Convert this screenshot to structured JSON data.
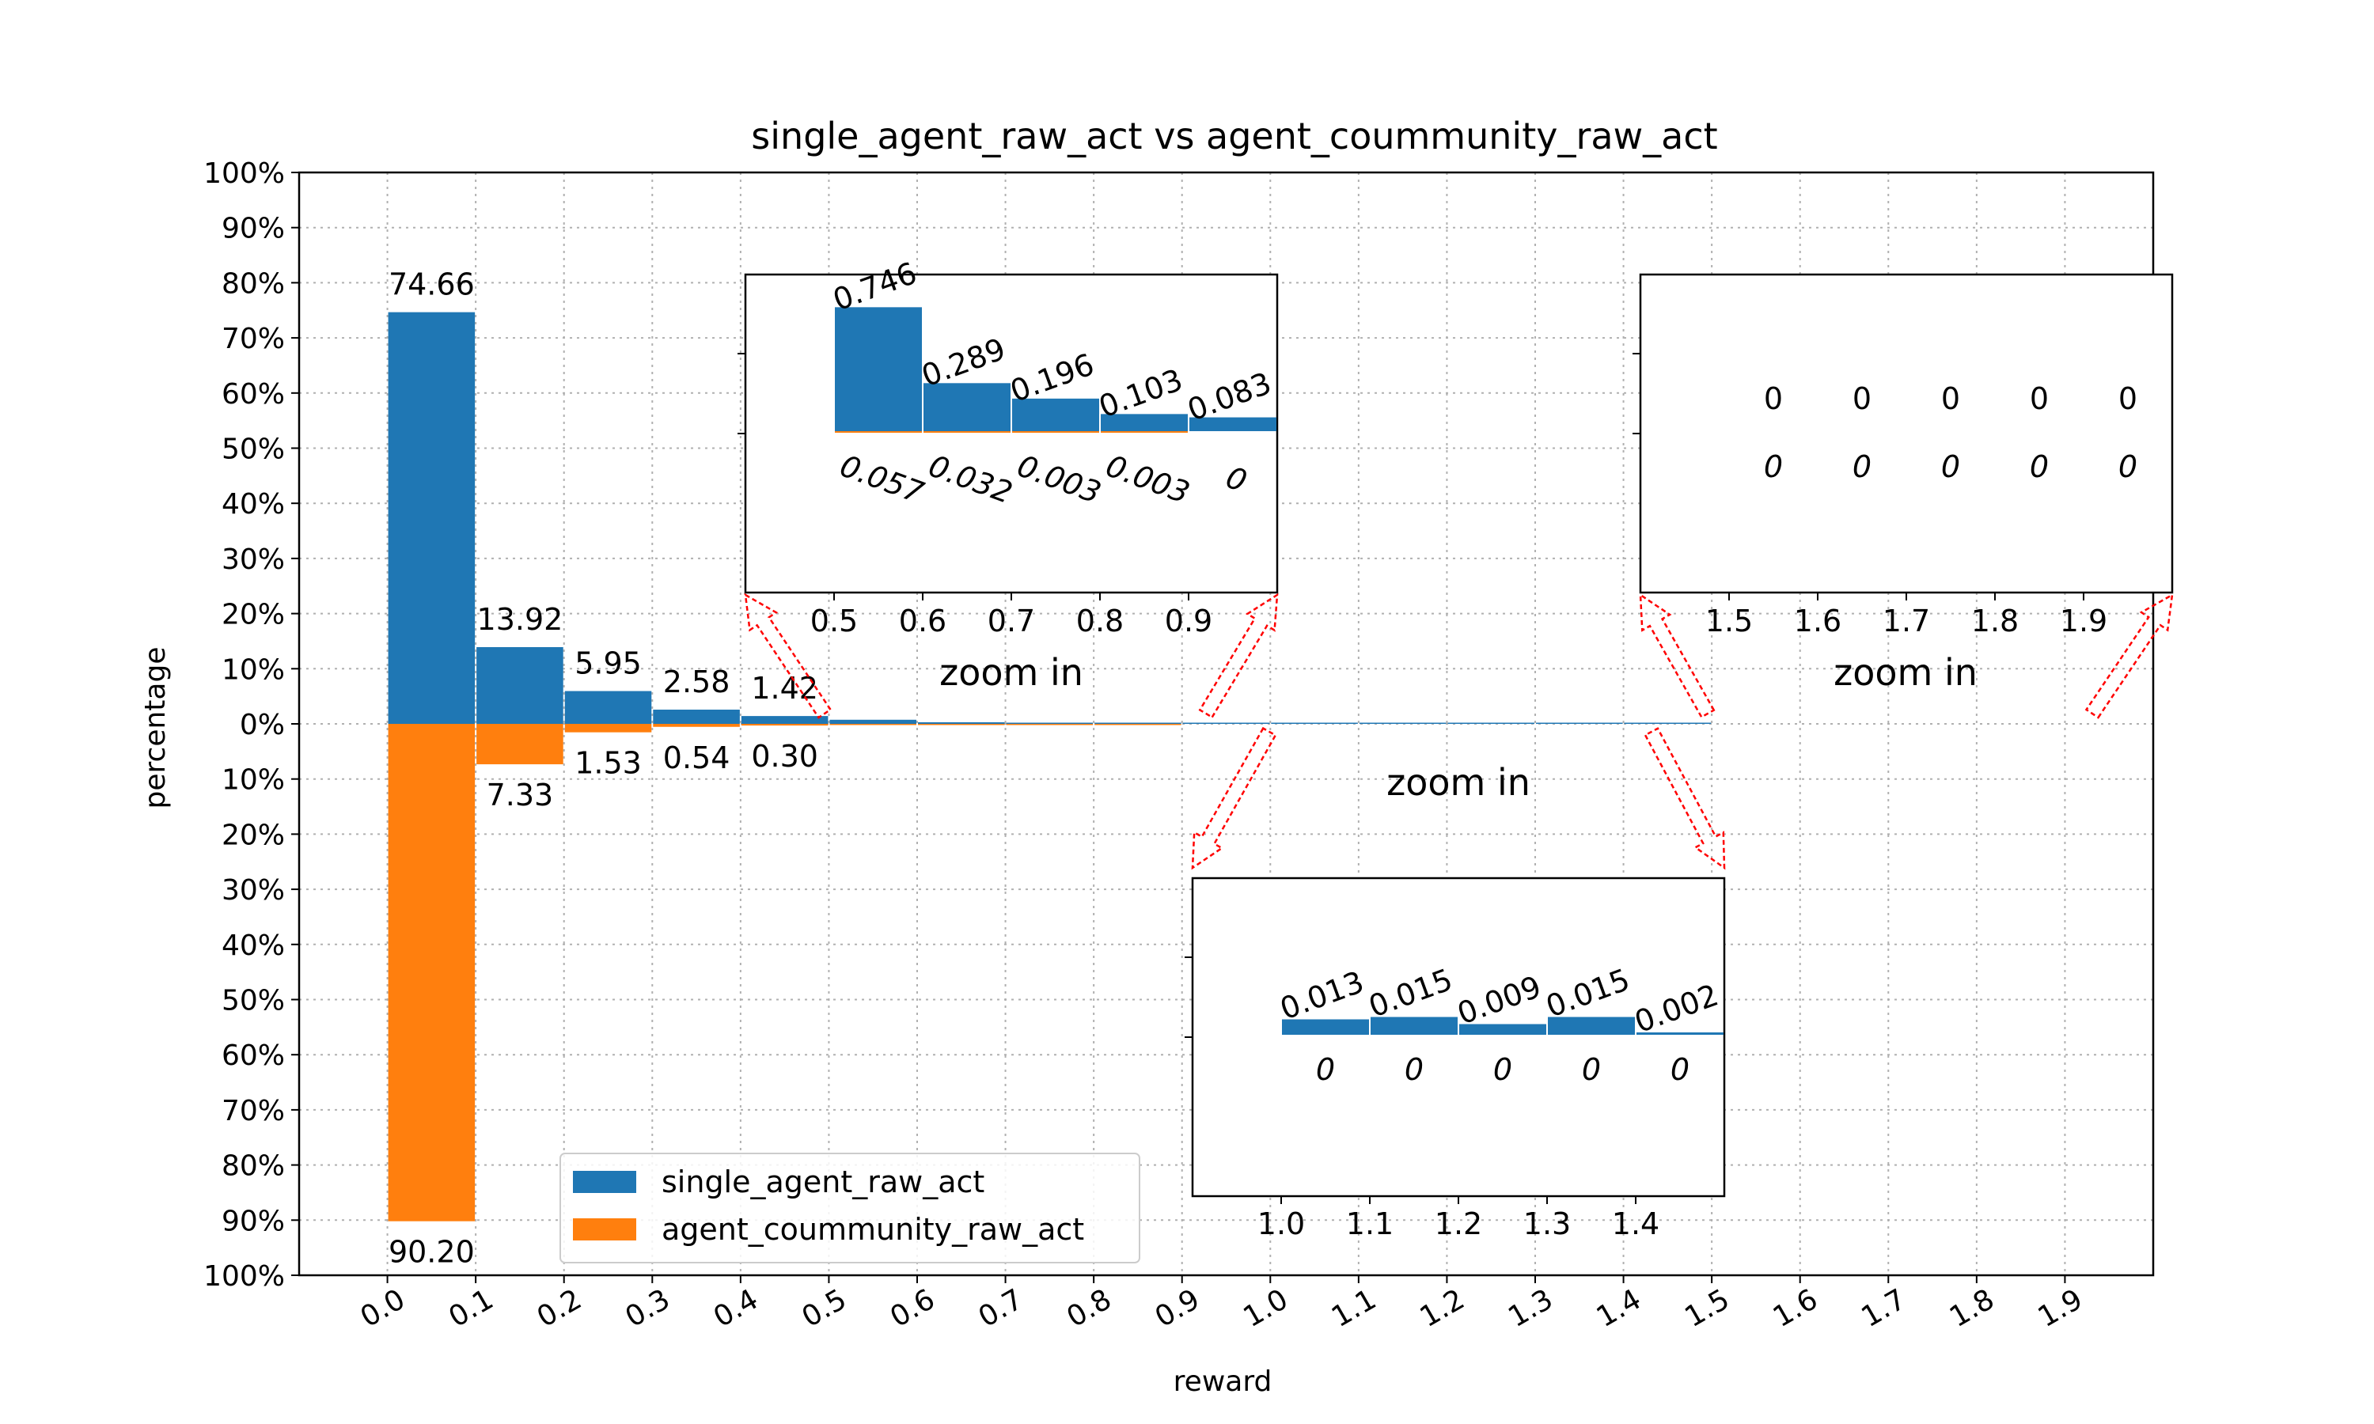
{
  "chart_data": {
    "type": "bar",
    "title": "single_agent_raw_act vs agent_coummunity_raw_act",
    "xlabel": "reward",
    "ylabel": "percentage",
    "ylim": [
      -100,
      100
    ],
    "xlim": [
      -0.1,
      2.0
    ],
    "grid": true,
    "legend_position": "lower-center",
    "x_ticks": [
      "0.0",
      "0.1",
      "0.2",
      "0.3",
      "0.4",
      "0.5",
      "0.6",
      "0.7",
      "0.8",
      "0.9",
      "1.0",
      "1.1",
      "1.2",
      "1.3",
      "1.4",
      "1.5",
      "1.6",
      "1.7",
      "1.8",
      "1.9"
    ],
    "y_ticks": [
      "100%",
      "90%",
      "80%",
      "70%",
      "60%",
      "50%",
      "40%",
      "30%",
      "20%",
      "10%",
      "0%",
      "10%",
      "20%",
      "30%",
      "40%",
      "50%",
      "60%",
      "70%",
      "80%",
      "90%",
      "100%"
    ],
    "bin_edges": [
      0.0,
      0.1,
      0.2,
      0.3,
      0.4,
      0.5,
      0.6,
      0.7,
      0.8,
      0.9,
      1.0,
      1.1,
      1.2,
      1.3,
      1.4,
      1.5,
      1.6,
      1.7,
      1.8,
      1.9,
      2.0
    ],
    "series": [
      {
        "name": "single_agent_raw_act",
        "color": "#1f77b4",
        "values": [
          74.66,
          13.92,
          5.95,
          2.58,
          1.42,
          0.746,
          0.289,
          0.196,
          0.103,
          0.083,
          0.013,
          0.015,
          0.009,
          0.015,
          0.002,
          0,
          0,
          0,
          0,
          0
        ]
      },
      {
        "name": "agent_coummunity_raw_act",
        "color": "#ff7f0e",
        "values": [
          90.2,
          7.33,
          1.53,
          0.54,
          0.3,
          0.057,
          0.032,
          0.003,
          0.003,
          0,
          0,
          0,
          0,
          0,
          0,
          0,
          0,
          0,
          0,
          0
        ]
      }
    ],
    "main_labels": {
      "top": [
        "74.66",
        "13.92",
        "5.95",
        "2.58",
        "1.42"
      ],
      "bottom": [
        "90.20",
        "7.33",
        "1.53",
        "0.54",
        "0.30"
      ]
    },
    "insets": [
      {
        "name": "inset-0.5-1.0",
        "x_range": [
          0.5,
          1.0
        ],
        "ticks": [
          "0.5",
          "0.6",
          "0.7",
          "0.8",
          "0.9"
        ],
        "top_labels": [
          "0.746",
          "0.289",
          "0.196",
          "0.103",
          "0.083"
        ],
        "bottom_labels": [
          "0.057",
          "0.032",
          "0.003",
          "0.003",
          "0"
        ],
        "zoom_label": "zoom in"
      },
      {
        "name": "inset-1.0-1.5",
        "x_range": [
          1.0,
          1.5
        ],
        "ticks": [
          "1.0",
          "1.1",
          "1.2",
          "1.3",
          "1.4"
        ],
        "top_labels": [
          "0.013",
          "0.015",
          "0.009",
          "0.015",
          "0.002"
        ],
        "bottom_labels": [
          "0",
          "0",
          "0",
          "0",
          "0"
        ],
        "zoom_label": "zoom in"
      },
      {
        "name": "inset-1.5-2.0",
        "x_range": [
          1.5,
          2.0
        ],
        "ticks": [
          "1.5",
          "1.6",
          "1.7",
          "1.8",
          "1.9"
        ],
        "top_labels": [
          "0",
          "0",
          "0",
          "0",
          "0"
        ],
        "bottom_labels": [
          "0",
          "0",
          "0",
          "0",
          "0"
        ],
        "zoom_label": "zoom in"
      }
    ],
    "arrow_color": "#ff0000"
  }
}
